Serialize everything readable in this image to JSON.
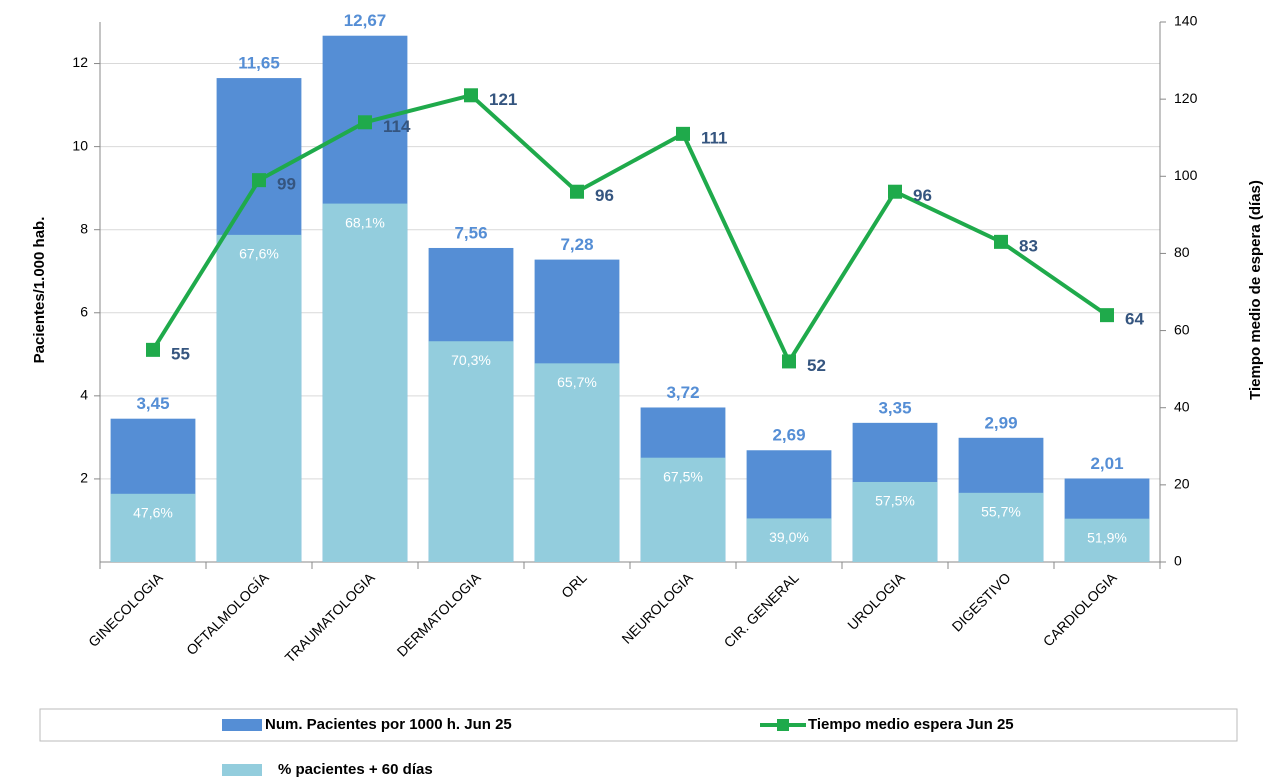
{
  "chart_data": {
    "type": "bar",
    "categories": [
      "GINECOLOGIA",
      "OFTALMOLOGÍA",
      "TRAUMATOLOGIA",
      "DERMATOLOGIA",
      "ORL",
      "NEUROLOGIA",
      "CIR. GENERAL",
      "UROLOGIA",
      "DIGESTIVO",
      "CARDIOLOGIA"
    ],
    "series": [
      {
        "name": "Num. Pacientes por 1000 h. Jun 25",
        "type": "bar",
        "color": "#558ed5",
        "values": [
          3.45,
          11.65,
          12.67,
          7.56,
          7.28,
          3.72,
          2.69,
          3.35,
          2.99,
          2.01
        ],
        "value_labels": [
          "3,45",
          "11,65",
          "12,67",
          "7,56",
          "7,28",
          "3,72",
          "2,69",
          "3,35",
          "2,99",
          "2,01"
        ]
      },
      {
        "name": "Tiempo medio espera Jun 25",
        "type": "line",
        "axis": "y2",
        "color": "#1faa4b",
        "values": [
          55,
          99,
          114,
          121,
          96,
          111,
          52,
          96,
          83,
          64
        ]
      },
      {
        "name": "% pacientes + 60 días",
        "type": "share",
        "of": 0,
        "color": "#93cddd",
        "values": [
          47.6,
          67.6,
          68.1,
          70.3,
          65.7,
          67.5,
          39.0,
          57.5,
          55.7,
          51.9
        ],
        "value_labels": [
          "47,6%",
          "67,6%",
          "68,1%",
          "70,3%",
          "65,7%",
          "67,5%",
          "39,0%",
          "57,5%",
          "55,7%",
          "51,9%"
        ]
      }
    ],
    "y_label": "Pacientes/1.000 hab.",
    "y2_label": "Tiempo medio de espera (días)",
    "ylim": [
      0,
      13
    ],
    "yticks": [
      2,
      4,
      6,
      8,
      10,
      12
    ],
    "y2lim": [
      0,
      140
    ],
    "y2ticks": [
      0,
      20,
      40,
      60,
      80,
      100,
      120,
      140
    ],
    "grid": true
  }
}
